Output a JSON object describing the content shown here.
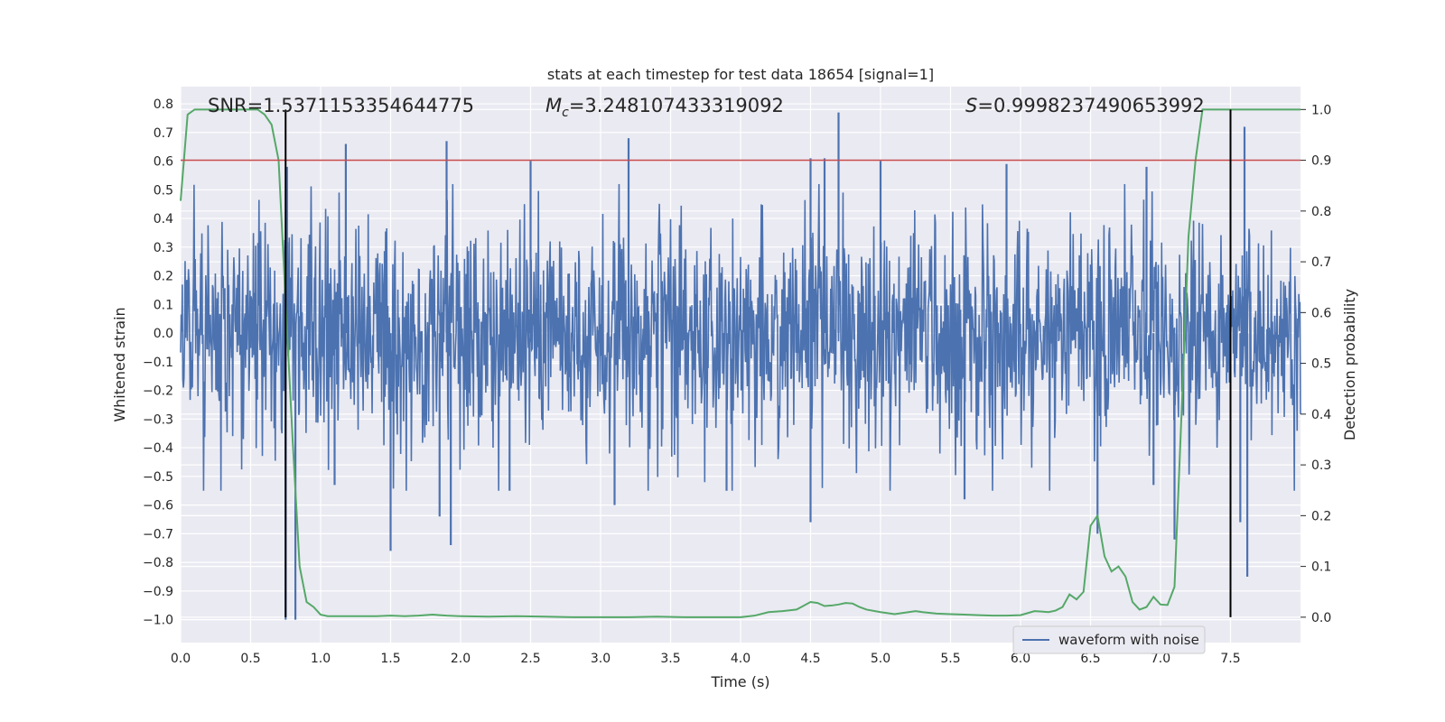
{
  "chart_data": {
    "type": "line",
    "title": "stats at each timestep for test data 18654 [signal=1]",
    "xlabel": "Time (s)",
    "ylabel_left": "Whitened strain",
    "ylabel_right": "Detection probability",
    "xlim": [
      0.0,
      8.0
    ],
    "ylim_left": [
      -1.08,
      0.86
    ],
    "ylim_right": [
      -0.05,
      1.045
    ],
    "x_ticks": [
      0.0,
      0.5,
      1.0,
      1.5,
      2.0,
      2.5,
      3.0,
      3.5,
      4.0,
      4.5,
      5.0,
      5.5,
      6.0,
      6.5,
      7.0,
      7.5
    ],
    "x_tick_labels": [
      "0.0",
      "0.5",
      "1.0",
      "1.5",
      "2.0",
      "2.5",
      "3.0",
      "3.5",
      "4.0",
      "4.5",
      "5.0",
      "5.5",
      "6.0",
      "6.5",
      "7.0",
      "7.5"
    ],
    "y_left_ticks": [
      0.8,
      0.7,
      0.6,
      0.5,
      0.4,
      0.3,
      0.2,
      0.1,
      0.0,
      -0.1,
      -0.2,
      -0.3,
      -0.4,
      -0.5,
      -0.6,
      -0.7,
      -0.8,
      -0.9,
      -1.0
    ],
    "y_left_tick_labels": [
      "0.8",
      "0.7",
      "0.6",
      "0.5",
      "0.4",
      "0.3",
      "0.2",
      "0.1",
      "0.0",
      "−0.1",
      "−0.2",
      "−0.3",
      "−0.4",
      "−0.5",
      "−0.6",
      "−0.7",
      "−0.8",
      "−0.9",
      "−1.0"
    ],
    "y_right_ticks": [
      1.0,
      0.9,
      0.8,
      0.7,
      0.6,
      0.5,
      0.4,
      0.3,
      0.2,
      0.1,
      0.0
    ],
    "y_right_tick_labels": [
      "1.0",
      "0.9",
      "0.8",
      "0.7",
      "0.6",
      "0.5",
      "0.4",
      "0.3",
      "0.2",
      "0.1",
      "0.0"
    ],
    "annotations": {
      "snr": "SNR=1.5371153354644775",
      "mc_symbol": "M",
      "mc_sub": "c",
      "mc_value": "=3.248107433319092",
      "s_symbol": "S",
      "s_value": "=0.9998237490653992"
    },
    "legend": {
      "entries": [
        "waveform with noise"
      ],
      "placement": "lower-right"
    },
    "grid": true,
    "threshold_probability": 0.9,
    "vertical_markers_x": [
      0.75,
      7.5
    ],
    "probability_series": {
      "name": "",
      "x": [
        0.0,
        0.05,
        0.1,
        0.15,
        0.2,
        0.3,
        0.4,
        0.5,
        0.55,
        0.6,
        0.65,
        0.7,
        0.75,
        0.8,
        0.85,
        0.9,
        0.95,
        1.0,
        1.05,
        1.1,
        1.2,
        1.3,
        1.4,
        1.5,
        1.6,
        1.7,
        1.8,
        1.85,
        1.9,
        2.0,
        2.2,
        2.4,
        2.6,
        2.8,
        3.0,
        3.2,
        3.4,
        3.6,
        3.8,
        4.0,
        4.1,
        4.2,
        4.3,
        4.4,
        4.5,
        4.55,
        4.6,
        4.65,
        4.7,
        4.75,
        4.8,
        4.85,
        4.9,
        5.0,
        5.1,
        5.2,
        5.25,
        5.3,
        5.4,
        5.5,
        5.6,
        5.7,
        5.8,
        5.9,
        6.0,
        6.05,
        6.1,
        6.15,
        6.2,
        6.25,
        6.3,
        6.35,
        6.4,
        6.45,
        6.5,
        6.55,
        6.6,
        6.65,
        6.7,
        6.75,
        6.8,
        6.85,
        6.9,
        6.95,
        7.0,
        7.05,
        7.1,
        7.15,
        7.2,
        7.25,
        7.3,
        7.35,
        7.4,
        7.45,
        7.5,
        7.55,
        7.6,
        7.65,
        7.7,
        7.75,
        7.8,
        7.85,
        7.9,
        7.95,
        8.0
      ],
      "values": [
        0.82,
        0.99,
        1.0,
        1.0,
        1.0,
        1.0,
        1.0,
        1.0,
        1.0,
        0.99,
        0.97,
        0.9,
        0.62,
        0.35,
        0.1,
        0.03,
        0.02,
        0.005,
        0.002,
        0.002,
        0.002,
        0.002,
        0.002,
        0.003,
        0.002,
        0.003,
        0.005,
        0.004,
        0.003,
        0.002,
        0.001,
        0.002,
        0.001,
        0.0,
        0.0,
        0.0,
        0.001,
        0.0,
        0.0,
        0.0,
        0.003,
        0.01,
        0.012,
        0.015,
        0.03,
        0.028,
        0.022,
        0.023,
        0.025,
        0.028,
        0.027,
        0.02,
        0.015,
        0.01,
        0.006,
        0.01,
        0.012,
        0.01,
        0.007,
        0.006,
        0.005,
        0.004,
        0.003,
        0.003,
        0.004,
        0.008,
        0.012,
        0.011,
        0.01,
        0.013,
        0.02,
        0.045,
        0.035,
        0.05,
        0.18,
        0.2,
        0.12,
        0.09,
        0.1,
        0.08,
        0.03,
        0.015,
        0.02,
        0.04,
        0.025,
        0.024,
        0.06,
        0.4,
        0.75,
        0.9,
        1.0,
        1.0,
        1.0,
        1.0,
        1.0,
        1.0,
        1.0,
        1.0,
        1.0,
        1.0,
        1.0,
        1.0,
        1.0,
        1.0,
        1.0
      ]
    },
    "waveform_series": {
      "name": "waveform with noise",
      "sample_rate_hz": 250,
      "noise_std": 0.1,
      "spikes": [
        {
          "x": 0.75,
          "y": -1.0
        },
        {
          "x": 0.82,
          "y": -1.0
        },
        {
          "x": 0.76,
          "y": 0.58
        },
        {
          "x": 1.18,
          "y": 0.66
        },
        {
          "x": 1.5,
          "y": -0.76
        },
        {
          "x": 1.85,
          "y": -0.64
        },
        {
          "x": 1.9,
          "y": 0.67
        },
        {
          "x": 1.93,
          "y": -0.74
        },
        {
          "x": 2.5,
          "y": 0.6
        },
        {
          "x": 3.2,
          "y": 0.68
        },
        {
          "x": 4.5,
          "y": -0.66
        },
        {
          "x": 4.5,
          "y": 0.61
        },
        {
          "x": 4.6,
          "y": 0.61
        },
        {
          "x": 4.7,
          "y": 0.77
        },
        {
          "x": 5.0,
          "y": 0.6
        },
        {
          "x": 5.9,
          "y": 0.59
        },
        {
          "x": 6.55,
          "y": -0.7
        },
        {
          "x": 7.1,
          "y": -0.72
        },
        {
          "x": 7.57,
          "y": -0.66
        },
        {
          "x": 7.6,
          "y": 0.72
        },
        {
          "x": 7.62,
          "y": -0.85
        },
        {
          "x": 1.1,
          "y": -0.53
        },
        {
          "x": 2.35,
          "y": -0.55
        },
        {
          "x": 3.1,
          "y": -0.6
        },
        {
          "x": 3.9,
          "y": -0.55
        },
        {
          "x": 5.6,
          "y": -0.58
        },
        {
          "x": 6.9,
          "y": 0.58
        },
        {
          "x": 6.95,
          "y": -0.53
        }
      ]
    }
  }
}
